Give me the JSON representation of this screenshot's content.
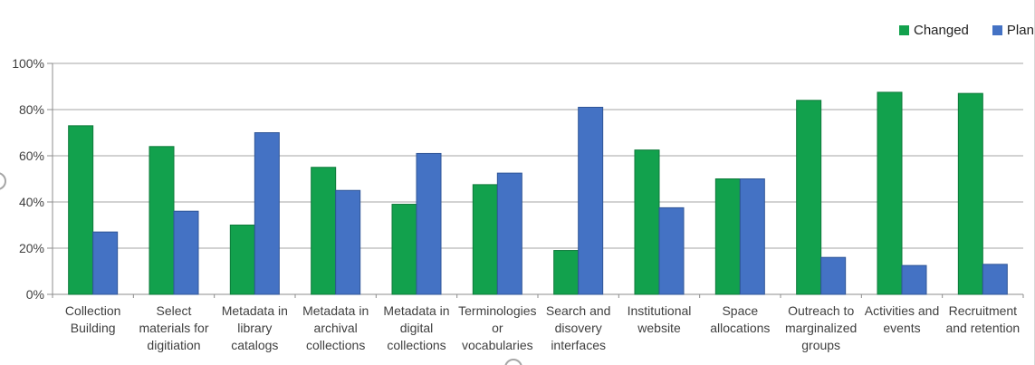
{
  "window": {
    "background": "#ffffff"
  },
  "legend": {
    "position": "top-right",
    "items": [
      {
        "label": "Changed",
        "color": "#12A14D"
      },
      {
        "label": "Plan",
        "color": "#4472C4"
      }
    ]
  },
  "chart_data": {
    "type": "bar",
    "title": "",
    "xlabel": "",
    "ylabel": "",
    "categories": [
      "Collection Building",
      "Select materials for digitiation",
      "Metadata in library catalogs",
      "Metadata in archival collections",
      "Metadata in digital collections",
      "Terminologies or vocabularies",
      "Search and disovery interfaces",
      "Institutional website",
      "Space allocations",
      "Outreach to marginalized groups",
      "Activities and events",
      "Recruitment and retention"
    ],
    "category_lines": [
      [
        "Collection",
        "Building"
      ],
      [
        "Select",
        "materials for",
        "digitiation"
      ],
      [
        "Metadata in",
        "library",
        "catalogs"
      ],
      [
        "Metadata in",
        "archival",
        "collections"
      ],
      [
        "Metadata in",
        "digital",
        "collections"
      ],
      [
        "Terminologies",
        "or",
        "vocabularies"
      ],
      [
        "Search and",
        "disovery",
        "interfaces"
      ],
      [
        "Institutional",
        "website"
      ],
      [
        "Space",
        "allocations"
      ],
      [
        "Outreach to",
        "marginalized",
        "groups"
      ],
      [
        "Activities and",
        "events"
      ],
      [
        "Recruitment",
        "and retention"
      ]
    ],
    "series": [
      {
        "name": "Changed",
        "color": "#12A14D",
        "border_color": "#0C7A39",
        "values": [
          73,
          64,
          30,
          55,
          39,
          47.5,
          19,
          62.5,
          50,
          84,
          87.5,
          87
        ]
      },
      {
        "name": "Plan",
        "color": "#4472C4",
        "border_color": "#2F5597",
        "values": [
          27,
          36,
          70,
          45,
          61,
          52.5,
          81,
          37.5,
          50,
          16,
          12.5,
          13
        ]
      }
    ],
    "y_axis": {
      "min": 0,
      "max": 100,
      "step": 20,
      "tick_labels": [
        "0%",
        "20%",
        "40%",
        "60%",
        "80%",
        "100%"
      ]
    },
    "grid": true,
    "legend_position": "top-right",
    "style": {
      "gridline_color": "#A6A6A6",
      "axis_color": "#8C8C8C",
      "tick_text_color": "#3F3F3F"
    }
  },
  "selection": {
    "handles": [
      "left-middle",
      "bottom-middle"
    ]
  }
}
